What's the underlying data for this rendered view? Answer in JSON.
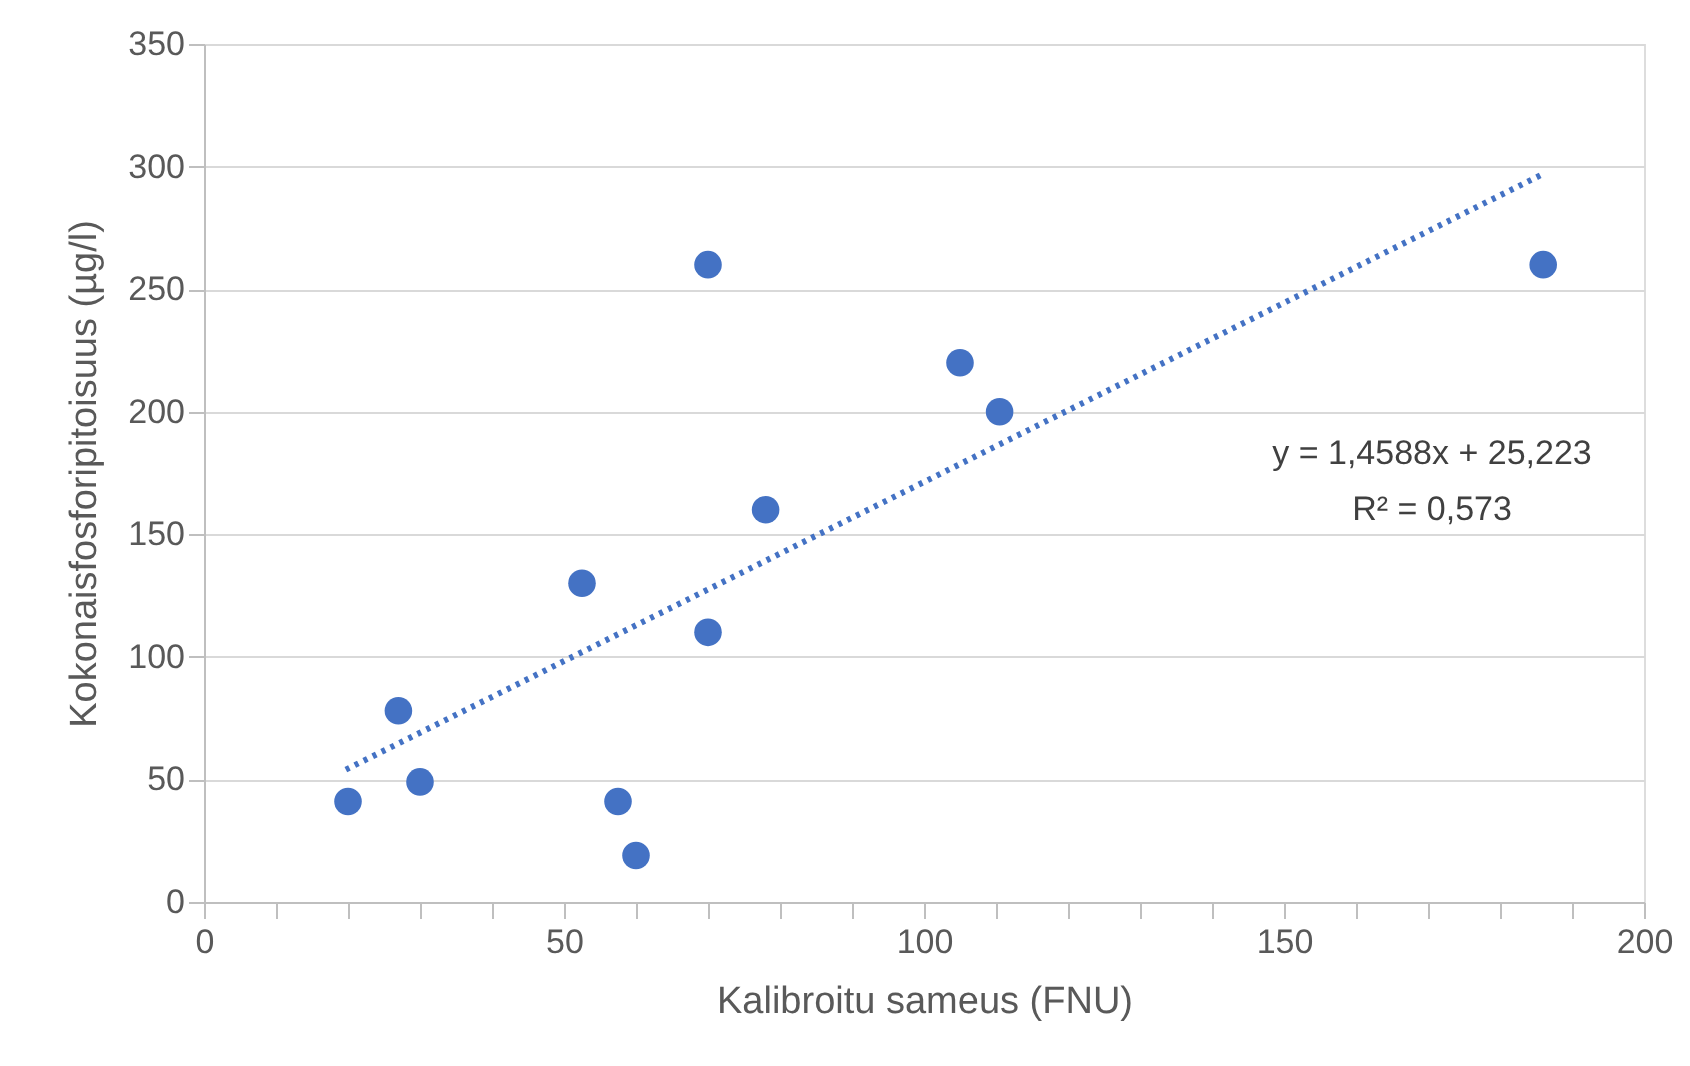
{
  "chart_data": {
    "type": "scatter",
    "xlabel": "Kalibroitu sameus (FNU)",
    "ylabel": "Kokonaisfosforipitoisuus (µg/l)",
    "series": [
      {
        "color": "#4472c4",
        "x": [
          20,
          27,
          30,
          52.5,
          57.5,
          60,
          70,
          70,
          78,
          105,
          110.5,
          186
        ],
        "values": [
          41,
          78,
          49,
          130,
          41,
          19,
          260,
          110,
          160,
          220,
          200,
          260
        ]
      },
      {
        "type": "line",
        "color": "#4472c4",
        "line_style": "dotted",
        "marker": "none",
        "x": [
          19.7,
          186
        ],
        "values": [
          54,
          297
        ]
      }
    ],
    "annotations": [
      "y = 1,4588x + 25,223",
      "R² = 0,573"
    ],
    "xlim": [
      0,
      200
    ],
    "ylim": [
      0,
      350
    ],
    "xticks": [
      0,
      {
        "value": 10,
        "label": null
      },
      {
        "value": 20,
        "label": null
      },
      {
        "value": 30,
        "label": null
      },
      {
        "value": 40,
        "label": null
      },
      50,
      {
        "value": 60,
        "label": null
      },
      {
        "value": 70,
        "label": null
      },
      {
        "value": 80,
        "label": null
      },
      {
        "value": 90,
        "label": null
      },
      100,
      {
        "value": 110,
        "label": null
      },
      {
        "value": 120,
        "label": null
      },
      {
        "value": 130,
        "label": null
      },
      {
        "value": 140,
        "label": null
      },
      150,
      {
        "value": 160,
        "label": null
      },
      {
        "value": 170,
        "label": null
      },
      {
        "value": 180,
        "label": null
      },
      {
        "value": 190,
        "label": null
      },
      200
    ],
    "yticks": [
      0,
      50,
      100,
      150,
      200,
      250,
      300,
      350
    ],
    "grid": "y",
    "marker": "circle"
  }
}
